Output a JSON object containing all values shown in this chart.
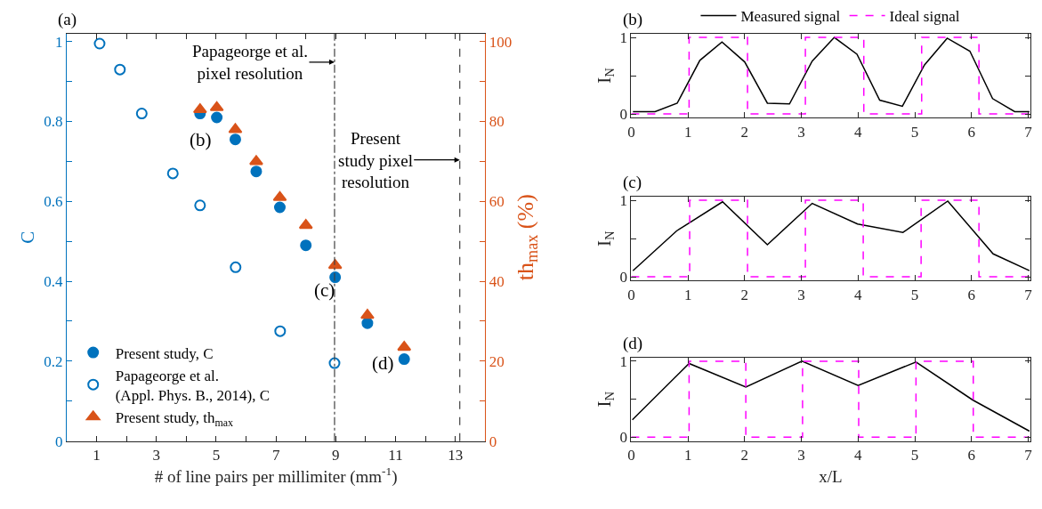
{
  "chart_data": [
    {
      "type": "scatter",
      "title": "(a)",
      "xlabel": "# of line pairs per millimiter (mm$^{-1}$)",
      "ylabel": "C",
      "y2label": "th$_{max}$ (%)",
      "xlim": [
        0,
        14
      ],
      "xticks": [
        1,
        {
          "value": 2,
          "label": null
        },
        3,
        {
          "value": 4,
          "label": null
        },
        5,
        {
          "value": 6,
          "label": null
        },
        7,
        {
          "value": 8,
          "label": null
        },
        9,
        {
          "value": 10,
          "label": null
        },
        11,
        {
          "value": 12,
          "label": null
        },
        13
      ],
      "ylim": [
        0,
        1.02
      ],
      "yticks": [
        0,
        {
          "value": 0.1,
          "label": null
        },
        0.2,
        {
          "value": 0.3,
          "label": null
        },
        0.4,
        {
          "value": 0.5,
          "label": null
        },
        0.6,
        {
          "value": 0.7,
          "label": null
        },
        0.8,
        {
          "value": 0.9,
          "label": null
        },
        1
      ],
      "y2lim": [
        0,
        102
      ],
      "y2ticks": [
        0,
        {
          "value": 10,
          "label": null
        },
        20,
        {
          "value": 30,
          "label": null
        },
        40,
        {
          "value": 50,
          "label": null
        },
        60,
        {
          "value": 70,
          "label": null
        },
        80,
        {
          "value": 90,
          "label": null
        },
        100
      ],
      "legend": "bottom left",
      "series": [
        {
          "name": "Present study, C",
          "color": "#0072bd",
          "marker": "circle",
          "x": [
            4.46,
            5.02,
            5.64,
            6.34,
            7.13,
            8.0,
            8.98,
            10.06,
            11.29
          ],
          "values": [
            0.82,
            0.81,
            0.755,
            0.675,
            0.585,
            0.49,
            0.41,
            0.295,
            0.205
          ]
        },
        {
          "name": "Papageorge et al.\n(Appl. Phys. B., 2014), C",
          "color": "#0072bd",
          "marker": "circle-open",
          "x": [
            1.1,
            1.78,
            2.51,
            3.55,
            4.46,
            5.65,
            7.14,
            8.96
          ],
          "values": [
            0.995,
            0.93,
            0.82,
            0.67,
            0.59,
            0.435,
            0.275,
            0.195
          ]
        },
        {
          "name": "Present study, th$_{max}$",
          "color": "#d95319",
          "marker": "triangle",
          "axis": "y2",
          "x": [
            4.46,
            5.02,
            5.64,
            6.34,
            7.13,
            8.0,
            8.98,
            10.06,
            11.29
          ],
          "values": [
            83,
            83.5,
            78,
            70,
            61,
            54,
            44,
            31.5,
            23.5
          ]
        }
      ],
      "ref_lines": [
        {
          "axis": "x",
          "value": 8.96,
          "label": "Papageorge et al.\npixel resolution",
          "line_style": "dashdot",
          "color": "#404040"
        },
        {
          "axis": "x",
          "value": 13.15,
          "label": "Present\nstudy pixel\nresolution",
          "line_style": "dashed",
          "color": "#404040"
        }
      ],
      "annotations": [
        "(b)",
        "(c)",
        "(d)"
      ]
    },
    {
      "type": "line",
      "title": "(b)",
      "ylabel": "I$_{N}$",
      "xlim": [
        0,
        7.03
      ],
      "xticks": [
        0,
        1,
        2,
        3,
        4,
        5,
        6,
        7
      ],
      "ylim": [
        -0.05,
        1.05
      ],
      "yticks": [
        0,
        {
          "value": 0.5,
          "label": null
        },
        1
      ],
      "legend": "top",
      "series": [
        {
          "name": "Measured signal",
          "color": "#000000",
          "line_style": "solid",
          "x": [
            0.03,
            0.42,
            0.81,
            1.21,
            1.6,
            2.0,
            2.4,
            2.79,
            3.19,
            3.58,
            3.98,
            4.38,
            4.78,
            5.17,
            5.57,
            5.97,
            6.37,
            6.76,
            7.02
          ],
          "values": [
            0.03,
            0.03,
            0.14,
            0.7,
            0.94,
            0.68,
            0.14,
            0.13,
            0.69,
            1.0,
            0.78,
            0.18,
            0.1,
            0.64,
            0.99,
            0.82,
            0.2,
            0.03,
            0.03
          ]
        },
        {
          "name": "Ideal signal",
          "type": "step",
          "color": "#ff00ff",
          "line_style": "dashed",
          "x": [
            0,
            1.02,
            2.05,
            3.07,
            4.1,
            5.12,
            6.13,
            7.02
          ],
          "values": [
            0,
            1,
            0,
            1,
            0,
            1,
            0,
            0
          ]
        }
      ]
    },
    {
      "type": "line",
      "title": "(c)",
      "ylabel": "I$_{N}$",
      "xlim": [
        0,
        7.03
      ],
      "xticks": [
        0,
        1,
        2,
        3,
        4,
        5,
        6,
        7
      ],
      "ylim": [
        -0.05,
        1.05
      ],
      "yticks": [
        0,
        {
          "value": 0.5,
          "label": null
        },
        1
      ],
      "series": [
        {
          "color": "#000000",
          "line_style": "solid",
          "x": [
            0.03,
            0.8,
            1.61,
            2.4,
            3.19,
            3.99,
            4.79,
            5.58,
            6.38,
            7.02
          ],
          "values": [
            0.08,
            0.6,
            0.98,
            0.42,
            0.96,
            0.69,
            0.58,
            0.99,
            0.3,
            0.08
          ]
        },
        {
          "type": "step",
          "color": "#ff00ff",
          "line_style": "dashed",
          "x": [
            0,
            1.03,
            2.05,
            3.07,
            4.09,
            5.11,
            6.13,
            7.02
          ],
          "values": [
            0,
            1,
            0,
            1,
            0,
            1,
            0,
            0
          ]
        }
      ]
    },
    {
      "type": "line",
      "title": "(d)",
      "xlabel": "x/L",
      "ylabel": "I$_{N}$",
      "xlim": [
        0,
        7.03
      ],
      "xticks": [
        0,
        1,
        2,
        3,
        4,
        5,
        6,
        7
      ],
      "ylim": [
        -0.05,
        1.05
      ],
      "yticks": [
        0,
        {
          "value": 0.5,
          "label": null
        },
        1
      ],
      "series": [
        {
          "color": "#000000",
          "line_style": "solid",
          "x": [
            0.02,
            1.02,
            2.02,
            3.01,
            4.0,
            5.02,
            6.02,
            7.02
          ],
          "values": [
            0.23,
            0.97,
            0.66,
            1.0,
            0.68,
            0.99,
            0.49,
            0.08
          ]
        },
        {
          "type": "step",
          "color": "#ff00ff",
          "line_style": "dashed",
          "x": [
            0,
            1.02,
            2.02,
            3.02,
            4.01,
            5.02,
            6.03,
            7.02
          ],
          "values": [
            0,
            1,
            0,
            1,
            0,
            1,
            0,
            0
          ]
        }
      ]
    }
  ]
}
